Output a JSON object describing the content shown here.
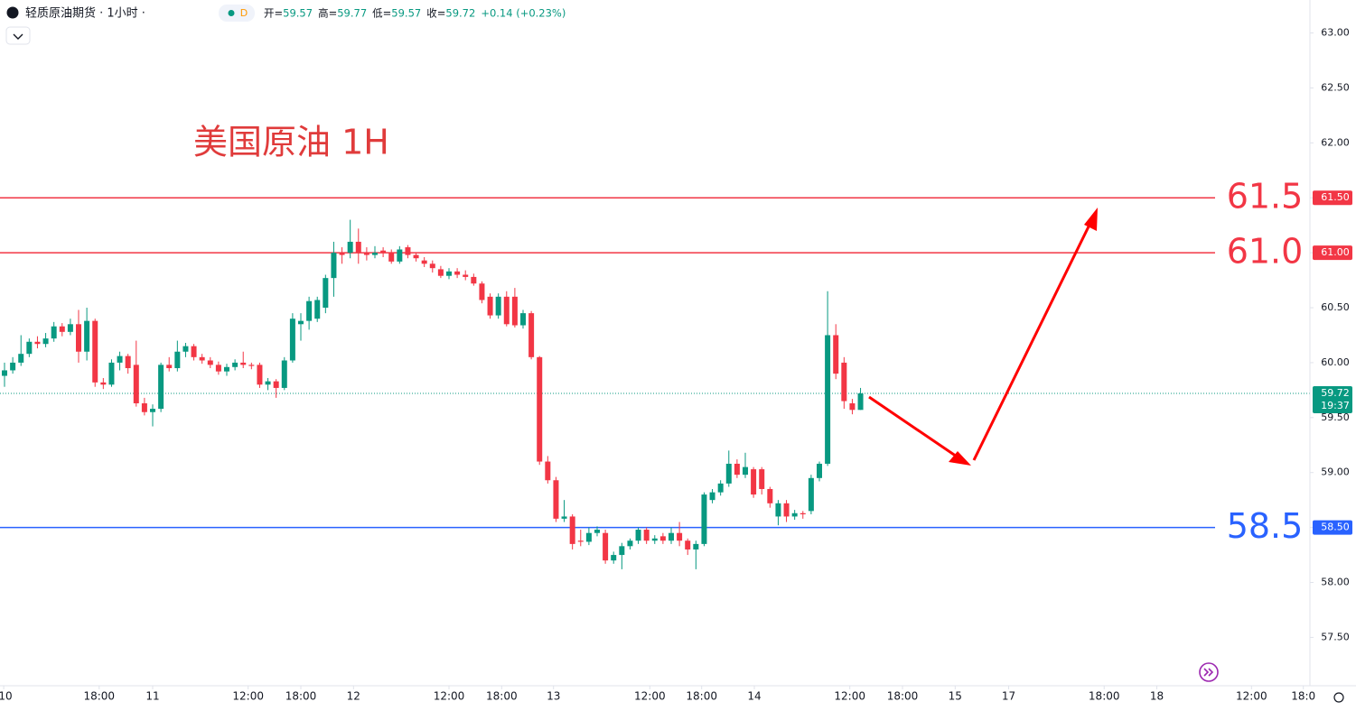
{
  "chart_data": {
    "type": "candlestick",
    "title": "轻质原油期货 · 1小时 ·",
    "interval_badge": "D",
    "ohlc_legend": [
      {
        "key": "开=",
        "value": "59.57"
      },
      {
        "key": "高=",
        "value": "59.77"
      },
      {
        "key": "低=",
        "value": "59.57"
      },
      {
        "key": "收=",
        "value": "59.72"
      },
      {
        "key": "",
        "value": "+0.14 (+0.23%)"
      }
    ],
    "annotation": "美国原油 1H",
    "up_color": "#089981",
    "down_color": "#f23645",
    "open": [
      59.88,
      59.93,
      60.0,
      60.08,
      60.19,
      60.17,
      60.22,
      60.33,
      60.28,
      60.35,
      60.1,
      60.38,
      59.82,
      59.8,
      60.0,
      60.06,
      59.98,
      59.63,
      59.55,
      59.58,
      59.98,
      59.95,
      60.1,
      60.15,
      60.05,
      60.02,
      59.98,
      59.92,
      59.96,
      60.0,
      59.98,
      59.98,
      59.8,
      59.83,
      59.77,
      60.02,
      60.35,
      60.38,
      60.4,
      60.5,
      60.77,
      61.0,
      61.0,
      61.1,
      61.0,
      60.98,
      61.02,
      61.0,
      60.92,
      61.05,
      60.98,
      60.93,
      60.9,
      60.85,
      60.79,
      60.83,
      60.8,
      60.78,
      60.72,
      60.6,
      60.43,
      60.6,
      60.6,
      60.34,
      60.45,
      60.05,
      59.1,
      58.93,
      58.58,
      58.6,
      58.38,
      58.37,
      58.45,
      58.45,
      58.2,
      58.25,
      58.33,
      58.38,
      58.48,
      58.38,
      58.42,
      58.38,
      58.45,
      58.38,
      58.3,
      58.35,
      58.75,
      58.82,
      58.9,
      59.08,
      58.98,
      59.03,
      59.03,
      58.85,
      58.6,
      58.72,
      58.6,
      58.63,
      58.65,
      58.95,
      59.08,
      60.25,
      60.0,
      59.63,
      59.57
    ],
    "high": [
      60.0,
      60.05,
      60.25,
      60.22,
      60.24,
      60.27,
      60.37,
      60.36,
      60.4,
      60.48,
      60.5,
      60.4,
      59.86,
      60.03,
      60.1,
      60.08,
      60.2,
      59.68,
      59.62,
      60.0,
      60.05,
      60.2,
      60.18,
      60.17,
      60.08,
      60.05,
      60.01,
      59.99,
      60.03,
      60.1,
      60.0,
      60.0,
      59.86,
      59.85,
      60.05,
      60.45,
      60.45,
      60.6,
      60.6,
      60.8,
      61.1,
      61.05,
      61.3,
      61.22,
      61.05,
      61.06,
      61.05,
      61.03,
      61.06,
      61.07,
      61.0,
      60.96,
      60.93,
      60.88,
      60.86,
      60.86,
      60.84,
      60.81,
      60.74,
      60.63,
      60.63,
      60.65,
      60.68,
      60.48,
      60.47,
      60.06,
      59.15,
      58.96,
      58.75,
      58.62,
      58.48,
      58.5,
      58.51,
      58.48,
      58.28,
      58.36,
      58.4,
      58.5,
      58.5,
      58.43,
      58.45,
      58.5,
      58.55,
      58.4,
      58.38,
      58.82,
      58.85,
      58.93,
      59.2,
      59.12,
      59.18,
      59.05,
      59.05,
      58.87,
      58.75,
      58.75,
      58.66,
      58.65,
      58.98,
      59.1,
      60.65,
      60.35,
      60.05,
      59.67,
      59.77
    ],
    "low": [
      59.78,
      59.9,
      59.97,
      60.05,
      60.13,
      60.14,
      60.19,
      60.24,
      60.25,
      60.0,
      60.02,
      59.78,
      59.76,
      59.78,
      59.93,
      59.9,
      59.6,
      59.52,
      59.42,
      59.55,
      59.92,
      59.92,
      60.05,
      60.02,
      59.99,
      59.95,
      59.89,
      59.88,
      59.93,
      59.95,
      59.94,
      59.77,
      59.75,
      59.68,
      59.75,
      60.0,
      60.2,
      60.3,
      60.37,
      60.45,
      60.6,
      60.9,
      60.95,
      60.9,
      60.93,
      60.95,
      60.96,
      60.9,
      60.9,
      60.95,
      60.92,
      60.87,
      60.82,
      60.77,
      60.76,
      60.77,
      60.75,
      60.7,
      60.54,
      60.4,
      60.4,
      60.33,
      60.32,
      60.31,
      60.03,
      59.07,
      58.9,
      58.55,
      58.55,
      58.3,
      58.33,
      58.34,
      58.42,
      58.17,
      58.17,
      58.12,
      58.3,
      58.35,
      58.35,
      58.35,
      58.35,
      58.35,
      58.33,
      58.25,
      58.12,
      58.33,
      58.72,
      58.79,
      58.87,
      58.95,
      58.95,
      58.77,
      58.8,
      58.68,
      58.52,
      58.55,
      58.57,
      58.58,
      58.62,
      58.92,
      59.06,
      59.85,
      59.58,
      59.53,
      59.57
    ],
    "close": [
      59.93,
      60.0,
      60.08,
      60.19,
      60.17,
      60.22,
      60.33,
      60.28,
      60.35,
      60.1,
      60.38,
      59.82,
      59.8,
      60.0,
      60.06,
      59.95,
      59.63,
      59.55,
      59.58,
      59.98,
      59.95,
      60.1,
      60.15,
      60.05,
      60.02,
      59.98,
      59.92,
      59.96,
      60.0,
      59.98,
      59.97,
      59.8,
      59.83,
      59.77,
      60.02,
      60.4,
      60.38,
      60.56,
      60.57,
      60.77,
      61.0,
      60.98,
      61.1,
      61.0,
      60.98,
      61.0,
      61.0,
      60.92,
      61.03,
      60.98,
      60.95,
      60.9,
      60.86,
      60.79,
      60.83,
      60.8,
      60.78,
      60.72,
      60.57,
      60.43,
      60.6,
      60.35,
      60.34,
      60.45,
      60.05,
      59.1,
      58.93,
      58.58,
      58.6,
      58.35,
      58.37,
      58.45,
      58.48,
      58.2,
      58.25,
      58.33,
      58.38,
      58.48,
      58.38,
      58.4,
      58.38,
      58.45,
      58.38,
      58.3,
      58.35,
      58.8,
      58.82,
      58.9,
      59.08,
      58.98,
      59.05,
      58.8,
      58.85,
      58.72,
      58.72,
      58.6,
      58.63,
      58.62,
      58.95,
      59.08,
      60.25,
      59.9,
      59.65,
      59.57,
      59.72
    ],
    "ylim": [
      57.06,
      63.3
    ],
    "yticks": [
      {
        "value": 57.5,
        "label": "57.50"
      },
      {
        "value": 58,
        "label": "58.00"
      },
      {
        "value": 58.5,
        "label": "58.50"
      },
      {
        "value": 59,
        "label": "59.00"
      },
      {
        "value": 59.5,
        "label": "59.50"
      },
      {
        "value": 60,
        "label": "60.00"
      },
      {
        "value": 60.5,
        "label": "60.50"
      },
      {
        "value": 61,
        "label": "61.00"
      },
      {
        "value": 61.5,
        "label": "61.50"
      },
      {
        "value": 62,
        "label": "62.00"
      },
      {
        "value": 62.5,
        "label": "62.50"
      },
      {
        "value": 63,
        "label": "63.00"
      }
    ],
    "xlim": [
      -0.55,
      158.6
    ],
    "xticks": [
      {
        "value": -0.1,
        "label": "10"
      },
      {
        "value": 11.5,
        "label": "18:00"
      },
      {
        "value": 18.0,
        "label": "11"
      },
      {
        "value": 29.6,
        "label": "12:00"
      },
      {
        "value": 36.0,
        "label": "18:00"
      },
      {
        "value": 42.4,
        "label": "12"
      },
      {
        "value": 54.0,
        "label": "12:00"
      },
      {
        "value": 60.4,
        "label": "18:00"
      },
      {
        "value": 66.7,
        "label": "13"
      },
      {
        "value": 78.4,
        "label": "12:00"
      },
      {
        "value": 84.7,
        "label": "18:00"
      },
      {
        "value": 91.1,
        "label": "14"
      },
      {
        "value": 102.7,
        "label": "12:00"
      },
      {
        "value": 109.1,
        "label": "18:00"
      },
      {
        "value": 115.5,
        "label": "15"
      },
      {
        "value": 122.0,
        "label": "17"
      },
      {
        "value": 133.6,
        "label": "18:00"
      },
      {
        "value": 140.0,
        "label": "18"
      },
      {
        "value": 151.5,
        "label": "12:00"
      },
      {
        "value": 157.8,
        "label": "18:0"
      }
    ],
    "levels": [
      {
        "value": 61.5,
        "label": "61.5",
        "tag": "61.50",
        "color": "#f23645"
      },
      {
        "value": 61.0,
        "label": "61.0",
        "tag": "61.00",
        "color": "#f23645"
      },
      {
        "value": 58.5,
        "label": "58.5",
        "tag": "58.50",
        "color": "#2962ff"
      }
    ],
    "last_price": {
      "value": 59.72,
      "label": "59.72",
      "countdown": "19:37",
      "color": "#089981"
    }
  }
}
